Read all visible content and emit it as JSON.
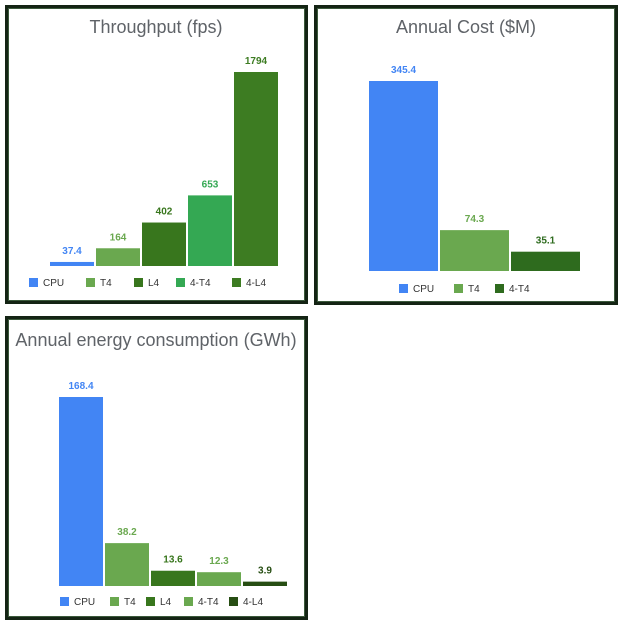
{
  "chart_data": [
    {
      "type": "bar",
      "title": "Throughput (fps)",
      "categories": [
        "CPU",
        "T4",
        "L4",
        "4-T4",
        "4-L4"
      ],
      "values": [
        37.4,
        164,
        402,
        653,
        1794
      ],
      "value_labels": [
        "37.4",
        "164",
        "402",
        "653",
        "1794"
      ],
      "colors": [
        "#4285f4",
        "#6aa84f",
        "#38761d",
        "#34a853",
        "#3d7c22"
      ],
      "label_colors": [
        "#4285f4",
        "#6aa84f",
        "#38761d",
        "#34a853",
        "#3d7c22"
      ],
      "legend": [
        "CPU",
        "T4",
        "L4",
        "4-T4",
        "4-L4"
      ],
      "legend_position": "bottom",
      "ylim": [
        0,
        1794
      ],
      "grid": false
    },
    {
      "type": "bar",
      "title": "Annual Cost ($M)",
      "categories": [
        "CPU",
        "T4",
        "4-T4"
      ],
      "values": [
        345.4,
        74.3,
        35.1
      ],
      "value_labels": [
        "345.4",
        "74.3",
        "35.1"
      ],
      "colors": [
        "#4285f4",
        "#6aa84f",
        "#2e6b1e"
      ],
      "label_colors": [
        "#4285f4",
        "#6aa84f",
        "#2e6b1e"
      ],
      "legend": [
        "CPU",
        "T4",
        "4-T4"
      ],
      "legend_position": "bottom",
      "ylim": [
        0,
        345.4
      ],
      "grid": false
    },
    {
      "type": "bar",
      "title": "Annual energy consumption (GWh)",
      "categories": [
        "CPU",
        "T4",
        "L4",
        "4-T4",
        "4-L4"
      ],
      "values": [
        168.4,
        38.2,
        13.6,
        12.3,
        3.9
      ],
      "value_labels": [
        "168.4",
        "38.2",
        "13.6",
        "12.3",
        "3.9"
      ],
      "colors": [
        "#4285f4",
        "#6aa84f",
        "#38761d",
        "#6aa84f",
        "#274e13"
      ],
      "label_colors": [
        "#4285f4",
        "#6aa84f",
        "#38761d",
        "#6aa84f",
        "#274e13"
      ],
      "legend": [
        "CPU",
        "T4",
        "L4",
        "4-T4",
        "4-L4"
      ],
      "legend_position": "bottom",
      "ylim": [
        0,
        168.4
      ],
      "grid": false
    }
  ]
}
